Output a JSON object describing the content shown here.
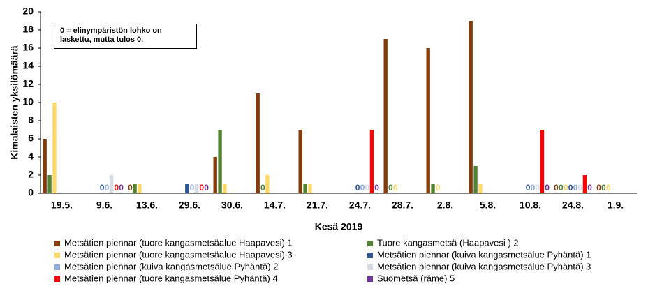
{
  "chart_data": {
    "type": "bar",
    "title_y": "Kimalaisten yksilömäärä",
    "x_label": "Kesä 2019",
    "annotation": "0 = elinympäristön lohko on laskettu, mutta tulos 0.",
    "categories": [
      "19.5.",
      "9.6.",
      "13.6.",
      "29.6.",
      "30.6.",
      "14.7.",
      "21.7.",
      "24.7.",
      "28.7.",
      "2.8.",
      "5.8.",
      "10.8.",
      "24.8.",
      "1.9."
    ],
    "series": [
      {
        "name": "Metsätien piennar (tuore kangasmetsäalue Haapavesi) 1",
        "color": "#843c0c",
        "values": [
          6,
          null,
          0,
          null,
          4,
          11,
          7,
          null,
          17,
          16,
          19,
          null,
          0,
          0
        ]
      },
      {
        "name": "Tuore kangasmetsä (Haapavesi ) 2",
        "color": "#548235",
        "values": [
          2,
          null,
          1,
          null,
          7,
          0,
          1,
          null,
          0,
          1,
          3,
          null,
          0,
          0
        ]
      },
      {
        "name": "Metsätien piennar (tuore kangasmetsäalue Haapavesi) 3",
        "color": "#ffd966",
        "values": [
          10,
          null,
          1,
          null,
          1,
          2,
          1,
          null,
          0,
          0,
          1,
          null,
          0,
          0
        ]
      },
      {
        "name": "Metsätien piennar (kuiva kangasmetsälue Pyhäntä) 1",
        "color": "#2f5597",
        "values": [
          null,
          0,
          null,
          1,
          null,
          null,
          null,
          0,
          null,
          null,
          null,
          0,
          0,
          null
        ]
      },
      {
        "name": "Metsätien piennar (kuiva kangasmetsälue Pyhäntä) 2",
        "color": "#8faadc",
        "values": [
          null,
          0,
          null,
          0,
          null,
          null,
          null,
          0,
          null,
          null,
          null,
          0,
          0,
          null
        ]
      },
      {
        "name": "Metsätien piennar (kuiva kangasmetsälue Pyhäntä) 3",
        "color": "#d6dce5",
        "values": [
          null,
          2,
          null,
          1,
          null,
          null,
          null,
          0,
          null,
          null,
          null,
          0,
          0,
          null
        ]
      },
      {
        "name": "Metsätien piennar (tuore kangasmetsälue Pyhäntä) 4",
        "color": "#ff0000",
        "values": [
          null,
          0,
          null,
          0,
          null,
          null,
          null,
          7,
          null,
          null,
          null,
          7,
          2,
          null
        ]
      },
      {
        "name": "Suometsä (räme) 5",
        "color": "#7030a0",
        "values": [
          null,
          0,
          null,
          0,
          null,
          null,
          null,
          0,
          null,
          null,
          null,
          0,
          0,
          null
        ]
      }
    ],
    "ylim": [
      0,
      20
    ],
    "yticks": [
      0,
      2,
      4,
      6,
      8,
      10,
      12,
      14,
      16,
      18,
      20
    ],
    "grid": false
  }
}
